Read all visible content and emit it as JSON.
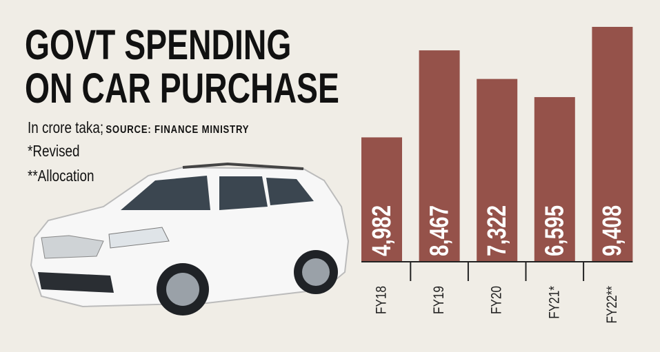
{
  "chart_data": {
    "type": "bar",
    "title": "GOVT SPENDING ON CAR PURCHASE",
    "subtitle": "In crore taka;",
    "source": "SOURCE: FINANCE MINISTRY",
    "notes": [
      "*Revised",
      "**Allocation"
    ],
    "categories": [
      "FY18",
      "FY19",
      "FY20",
      "FY21*",
      "FY22**"
    ],
    "values": [
      4982,
      8467,
      7322,
      6595,
      9408
    ],
    "value_labels": [
      "4,982",
      "8,467",
      "7,322",
      "6,595",
      "9,408"
    ],
    "color": "#95524a"
  }
}
